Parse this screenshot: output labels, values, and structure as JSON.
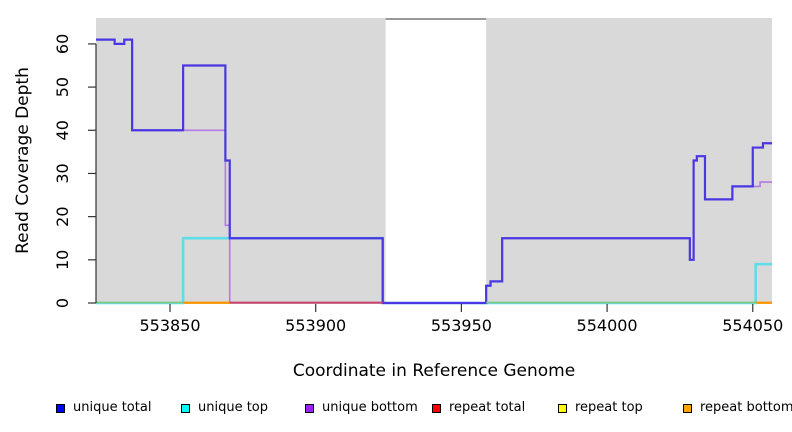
{
  "chart_data": {
    "type": "line",
    "subtype": "step",
    "title": "",
    "xlabel": "Coordinate in Reference Genome",
    "ylabel": "Read Coverage Depth",
    "xlim": [
      553824.6,
      554056.6
    ],
    "ylim": [
      0,
      66
    ],
    "x_ticks": [
      553850,
      553900,
      553950,
      554000,
      554050
    ],
    "x_tick_labels": [
      "553850",
      "553900",
      "553950",
      "554000",
      "554050"
    ],
    "y_ticks": [
      0,
      10,
      20,
      30,
      40,
      50,
      60
    ],
    "y_tick_labels": [
      "0",
      "10",
      "20",
      "30",
      "40",
      "50",
      "60"
    ],
    "grid": false,
    "plot_bg_color": "#d9d9d9",
    "legend_position": "bottom",
    "mask_region": {
      "from": 553924,
      "to": 553958.5,
      "color": "#ffffff",
      "top_border_color": "#999999"
    },
    "series": [
      {
        "name": "unique total",
        "legend_color": "#0000FF",
        "line_color": "#4A36E2",
        "width": 2.2,
        "z": 6,
        "steps": [
          [
            553824.6,
            61
          ],
          [
            553831,
            60
          ],
          [
            553834.3,
            61
          ],
          [
            553837,
            40
          ],
          [
            553854.5,
            55
          ],
          [
            553869,
            33
          ],
          [
            553870.5,
            15
          ],
          [
            553923,
            0
          ],
          [
            553958.5,
            4
          ],
          [
            553960,
            5
          ],
          [
            553964,
            15
          ],
          [
            554028.4,
            10
          ],
          [
            554029.7,
            33
          ],
          [
            554030.8,
            34
          ],
          [
            554033.6,
            24
          ],
          [
            554043,
            27
          ],
          [
            554050,
            36
          ],
          [
            554053.5,
            37
          ]
        ]
      },
      {
        "name": "unique top",
        "legend_color": "#00FFFF",
        "line_color": "#5FDDE8",
        "width": 2.6,
        "z": 5,
        "steps": [
          [
            553824.6,
            0
          ],
          [
            553854.5,
            15
          ],
          [
            553923,
            0
          ],
          [
            554051,
            9
          ]
        ]
      },
      {
        "name": "unique bottom",
        "legend_color": "#A020F0",
        "line_color": "#B678E6",
        "width": 1.6,
        "z": 4,
        "steps": [
          [
            553824.6,
            61
          ],
          [
            553831,
            60
          ],
          [
            553834.3,
            61
          ],
          [
            553837,
            40
          ],
          [
            553869,
            18
          ],
          [
            553870.5,
            0
          ],
          [
            553958.5,
            4
          ],
          [
            553960,
            5
          ],
          [
            553964,
            15
          ],
          [
            554028.4,
            10
          ],
          [
            554029.7,
            33
          ],
          [
            554030.8,
            34
          ],
          [
            554033.6,
            24
          ],
          [
            554043,
            27
          ],
          [
            554052.5,
            28
          ]
        ]
      },
      {
        "name": "repeat total",
        "legend_color": "#FF0000",
        "line_color": "#DD2222",
        "width": 1.4,
        "z": 1,
        "steps": [
          [
            553824.6,
            0
          ]
        ]
      },
      {
        "name": "repeat top",
        "legend_color": "#FFFF00",
        "line_color": "#EEEE00",
        "width": 1.4,
        "z": 2,
        "steps": [
          [
            553824.6,
            0
          ]
        ]
      },
      {
        "name": "repeat bottom",
        "legend_color": "#FFA500",
        "line_color": "#FF9800",
        "width": 1.4,
        "z": 3,
        "steps": [
          [
            553824.6,
            0
          ]
        ]
      }
    ],
    "baseline_overlap_segments": [
      {
        "from": 553824.6,
        "to": 553854.5,
        "color": "#85C885"
      },
      {
        "from": 553854.5,
        "to": 553870.5,
        "color": "#FF9300"
      },
      {
        "from": 553870.5,
        "to": 553923,
        "color": "#C94472"
      },
      {
        "from": 553958.5,
        "to": 554051,
        "color": "#85C885"
      },
      {
        "from": 554051,
        "to": 554056.6,
        "color": "#FF9300"
      }
    ],
    "axis_color": "#333333",
    "text_color": "#000000"
  }
}
